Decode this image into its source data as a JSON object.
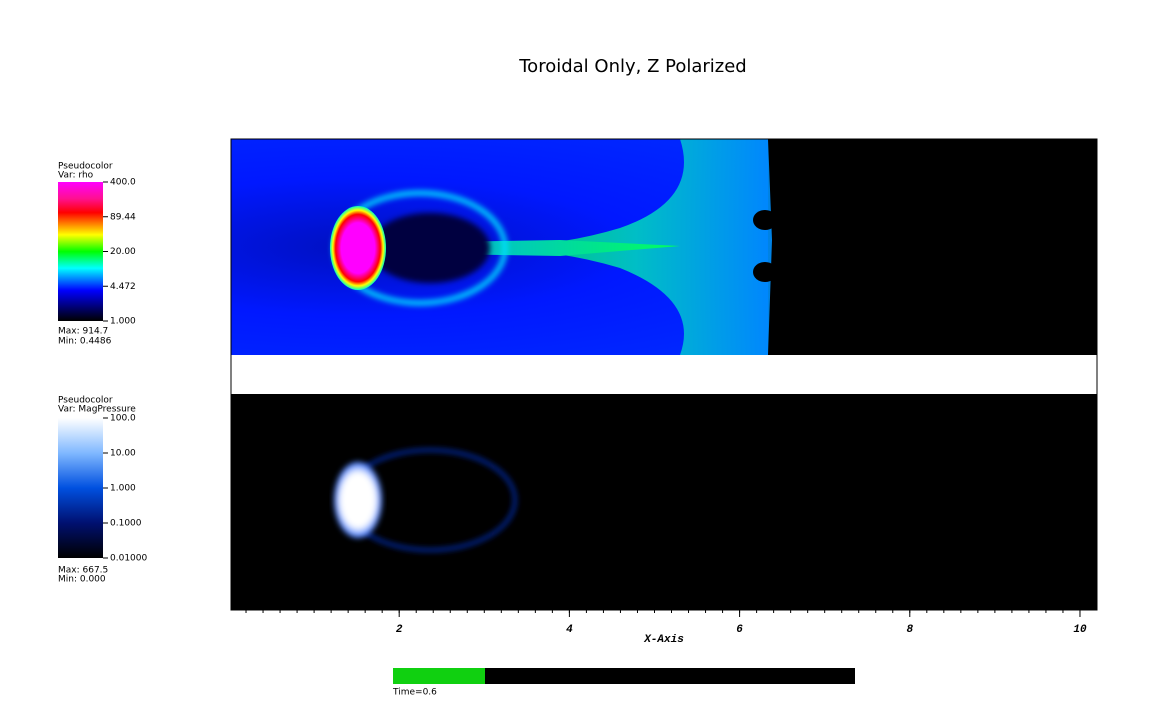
{
  "title": "Toroidal Only, Z Polarized",
  "legends": [
    {
      "plot": "Pseudocolor",
      "var": "Var: rho",
      "ticks": [
        "400.0",
        "89.44",
        "20.00",
        "4.472",
        "1.000"
      ],
      "max": "Max:  914.7",
      "min": "Min:  0.4486"
    },
    {
      "plot": "Pseudocolor",
      "var": "Var: MagPressure",
      "ticks": [
        "100.0",
        "10.00",
        "1.000",
        "0.1000",
        "0.01000"
      ],
      "max": "Max:  667.5",
      "min": "Min:  0.000"
    }
  ],
  "x_axis": {
    "label": "X-Axis",
    "xlim": [
      0,
      10.2
    ],
    "xticks": [
      2,
      4,
      6,
      8,
      10
    ]
  },
  "time": "Time=0.6"
}
